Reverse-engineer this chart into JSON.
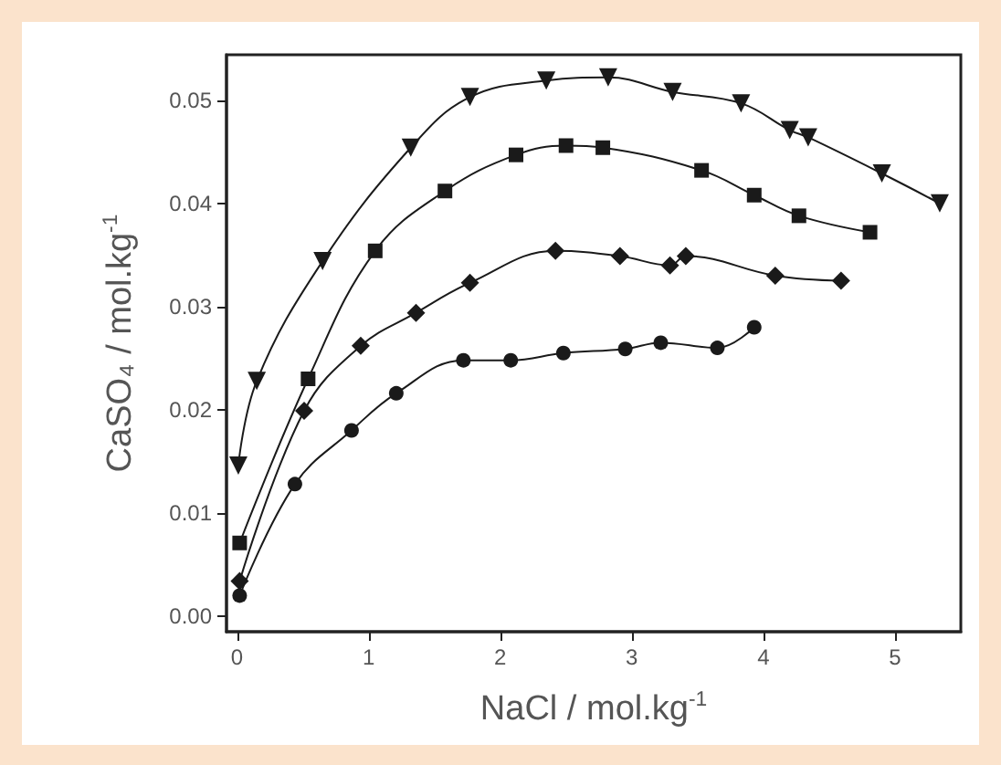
{
  "chart_data": {
    "type": "line",
    "xlabel": "NaCl / mol.kg$^{-1}$",
    "ylabel": "CaSO₄ / mol.kg$^{-1}$",
    "xlim": [
      -0.08,
      5.5
    ],
    "ylim": [
      -0.0015,
      0.0544
    ],
    "xticks": [
      0,
      1,
      2,
      3,
      4,
      5
    ],
    "yticks": [
      {
        "value": 0,
        "label": "0.00"
      },
      {
        "value": 0.01,
        "label": "0.01"
      },
      {
        "value": 0.02,
        "label": "0.02"
      },
      {
        "value": 0.03,
        "label": "0.03"
      },
      {
        "value": 0.04,
        "label": "0.04"
      },
      {
        "value": 0.05,
        "label": "0.05"
      }
    ],
    "grid": false,
    "line_style": "solid",
    "series": [
      {
        "color": "#1a1a1a",
        "marker": "triangle",
        "x": [
          0.01,
          0.15,
          0.65,
          1.32,
          1.77,
          2.35,
          2.82,
          3.31,
          3.83,
          4.2,
          4.34,
          4.9,
          5.34
        ],
        "values": [
          0.0146,
          0.0228,
          0.0344,
          0.0454,
          0.0503,
          0.0519,
          0.0522,
          0.0508,
          0.0497,
          0.0471,
          0.0464,
          0.0429,
          0.04
        ]
      },
      {
        "color": "#1a1a1a",
        "marker": "square",
        "x": [
          0.02,
          0.54,
          1.05,
          1.58,
          2.12,
          2.5,
          2.78,
          3.53,
          3.93,
          4.27,
          4.81
        ],
        "values": [
          0.0071,
          0.023,
          0.0354,
          0.0412,
          0.0447,
          0.0456,
          0.0454,
          0.0432,
          0.0408,
          0.0388,
          0.0372
        ]
      },
      {
        "color": "#1a1a1a",
        "marker": "diamond",
        "x": [
          0.02,
          0.51,
          0.94,
          1.36,
          1.77,
          2.42,
          2.91,
          3.29,
          3.41,
          4.09,
          4.59
        ],
        "values": [
          0.0034,
          0.0199,
          0.0262,
          0.0294,
          0.0323,
          0.0354,
          0.0349,
          0.034,
          0.0349,
          0.033,
          0.0325
        ]
      },
      {
        "color": "#1a1a1a",
        "marker": "circle",
        "x": [
          0.02,
          0.44,
          0.87,
          1.21,
          1.72,
          2.08,
          2.48,
          2.95,
          3.22,
          3.65,
          3.93
        ],
        "values": [
          0.002,
          0.0128,
          0.018,
          0.0216,
          0.0248,
          0.0248,
          0.0255,
          0.0259,
          0.0265,
          0.026,
          0.028
        ]
      }
    ]
  }
}
